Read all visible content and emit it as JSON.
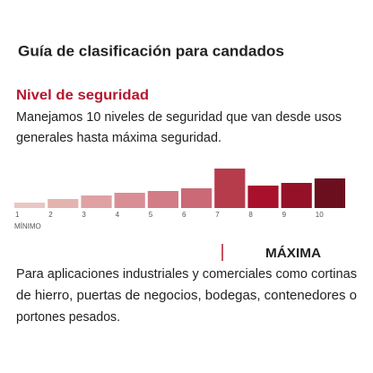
{
  "chart_data": {
    "type": "bar",
    "title": "Guía de clasificación para candados",
    "subtitle": "Nivel de seguridad",
    "description": [
      "Manejamos 10 niveles de seguridad que van desde usos",
      "generales hasta máxima seguridad."
    ],
    "categories": [
      "1",
      "2",
      "3",
      "4",
      "5",
      "6",
      "7",
      "8",
      "9",
      "10"
    ],
    "values": [
      6,
      10,
      14,
      17,
      19,
      22,
      44,
      25,
      28,
      33
    ],
    "colors": [
      "#e9c6c2",
      "#e4b3b0",
      "#dfa1a3",
      "#d98e95",
      "#d27c87",
      "#cb6977",
      "#b63c4b",
      "#a8102c",
      "#951127",
      "#6b0f1e"
    ],
    "ylim": [
      0,
      44
    ],
    "min_label": "MÍNIMO",
    "max_label": "MÁXIMA",
    "note": [
      "Para aplicaciones industriales y comerciales como cortinas",
      "de hierro, puertas de negocios, bodegas, contenedores o",
      "portones pesados."
    ]
  }
}
